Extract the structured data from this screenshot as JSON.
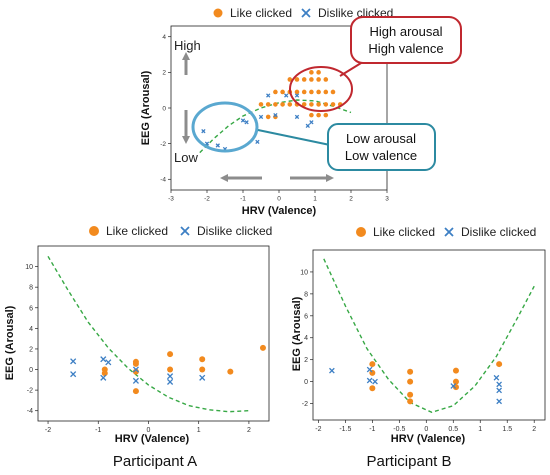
{
  "colors": {
    "like": "#f28a1e",
    "dislike": "#3d7fc4",
    "fit": "#37a845",
    "high_callout": "#c0282f",
    "low_callout": "#2c8aa1",
    "low_ellipse": "#5aa8d0",
    "arrow": "#8c8c8c"
  },
  "legend": {
    "like_label": "Like clicked",
    "dislike_label": "Dislike clicked"
  },
  "chart_data": [
    {
      "type": "scatter",
      "panel": "top",
      "xlabel": "HRV (Valence)",
      "ylabel": "EEG (Arousal)",
      "xlim": [
        -3,
        3
      ],
      "ylim": [
        -4.6,
        4.6
      ],
      "xticks": [
        -3,
        -2,
        -1,
        0,
        1,
        2,
        3
      ],
      "yticks": [
        -4,
        -2,
        0,
        2,
        4
      ],
      "annotations": {
        "high": "High",
        "low": "Low",
        "high_callout": [
          "High arousal",
          "High valence"
        ],
        "low_callout": [
          "Low arousal",
          "Low valence"
        ]
      },
      "fit": {
        "style": "dashed",
        "points": [
          [
            -2.2,
            -2.5
          ],
          [
            -1.8,
            -1.7
          ],
          [
            -1.4,
            -1.0
          ],
          [
            -1.0,
            -0.45
          ],
          [
            -0.5,
            0.0
          ],
          [
            0.0,
            0.3
          ],
          [
            0.5,
            0.45
          ],
          [
            1.0,
            0.4
          ],
          [
            1.5,
            0.1
          ],
          [
            2.0,
            -0.25
          ]
        ]
      },
      "series": [
        {
          "name": "Like clicked",
          "marker": "circle",
          "x": [
            -0.5,
            -0.3,
            -0.1,
            0.1,
            0.3,
            0.5,
            0.7,
            0.9,
            1.1,
            1.3,
            1.5,
            1.7,
            -0.1,
            0.1,
            0.3,
            0.5,
            0.7,
            0.9,
            1.1,
            1.3,
            1.5,
            0.3,
            0.5,
            0.7,
            0.9,
            1.1,
            1.3,
            0.9,
            1.1,
            1.3,
            -0.3,
            -0.1,
            0.9,
            1.1
          ],
          "y": [
            0.2,
            0.2,
            0.2,
            0.2,
            0.2,
            0.2,
            0.2,
            0.2,
            0.2,
            0.2,
            0.2,
            0.2,
            0.9,
            0.9,
            0.9,
            0.9,
            0.9,
            0.9,
            0.9,
            0.9,
            0.9,
            1.6,
            1.6,
            1.6,
            1.6,
            1.6,
            1.6,
            -0.4,
            -0.4,
            -0.4,
            -0.5,
            -0.5,
            2.0,
            2.0
          ]
        },
        {
          "name": "Dislike clicked",
          "marker": "x",
          "x": [
            -2.1,
            -2.0,
            -1.7,
            -1.5,
            -1.0,
            -0.9,
            -0.6,
            -0.5,
            -0.1,
            0.2,
            0.5,
            0.8,
            -0.3,
            0.5,
            0.9
          ],
          "y": [
            -1.3,
            -2.0,
            -2.1,
            -2.3,
            -0.7,
            -0.8,
            -1.9,
            -0.5,
            -0.4,
            0.7,
            -0.5,
            -1.0,
            0.7,
            0.7,
            -0.8
          ]
        }
      ]
    },
    {
      "type": "scatter",
      "panel": "bottom-left",
      "title_caption": "Participant A",
      "xlabel": "HRV (Valence)",
      "ylabel": "EEG (Arousal)",
      "xlim": [
        -2.2,
        2.4
      ],
      "ylim": [
        -5,
        12
      ],
      "xticks": [
        -2,
        -1,
        0,
        1,
        2
      ],
      "yticks": [
        -4,
        -2,
        0,
        2,
        4,
        6,
        8,
        10
      ],
      "fit": {
        "style": "dashed",
        "points": [
          [
            -2.0,
            11.0
          ],
          [
            -1.6,
            7.7
          ],
          [
            -1.2,
            4.6
          ],
          [
            -0.8,
            2.1
          ],
          [
            -0.4,
            0.1
          ],
          [
            0.0,
            -1.5
          ],
          [
            0.4,
            -2.7
          ],
          [
            0.8,
            -3.5
          ],
          [
            1.2,
            -3.9
          ],
          [
            1.6,
            -4.1
          ],
          [
            2.0,
            -4.0
          ]
        ]
      },
      "series": [
        {
          "name": "Like clicked",
          "marker": "circle",
          "x": [
            -0.87,
            -0.87,
            -0.25,
            -0.25,
            -0.25,
            -0.25,
            0.43,
            0.43,
            1.07,
            1.07,
            1.63,
            2.28
          ],
          "y": [
            0.0,
            -0.35,
            0.75,
            0.55,
            -0.2,
            -2.1,
            1.5,
            0.0,
            1.0,
            0.0,
            -0.2,
            2.1
          ]
        },
        {
          "name": "Dislike clicked",
          "marker": "x",
          "x": [
            -1.5,
            -1.5,
            -0.9,
            -0.9,
            -0.8,
            -0.25,
            -0.25,
            0.43,
            0.43,
            1.07
          ],
          "y": [
            0.8,
            -0.45,
            1.0,
            -0.8,
            0.7,
            0.0,
            -1.1,
            -0.65,
            -1.2,
            -0.8
          ]
        }
      ]
    },
    {
      "type": "scatter",
      "panel": "bottom-right",
      "title_caption": "Participant B",
      "xlabel": "HRV (Valence)",
      "ylabel": "EEG (Arousal)",
      "xlim": [
        -2.1,
        2.2
      ],
      "ylim": [
        -3.5,
        12
      ],
      "xticks": [
        -2.0,
        -1.5,
        -1.0,
        -0.5,
        0.0,
        0.5,
        1.0,
        1.5,
        2.0
      ],
      "yticks": [
        -2,
        0,
        2,
        4,
        6,
        8,
        10
      ],
      "fit": {
        "style": "dashed",
        "points": [
          [
            -1.9,
            11.2
          ],
          [
            -1.5,
            6.9
          ],
          [
            -1.1,
            3.0
          ],
          [
            -0.7,
            0.2
          ],
          [
            -0.3,
            -1.9
          ],
          [
            0.1,
            -2.8
          ],
          [
            0.5,
            -2.2
          ],
          [
            0.9,
            -0.4
          ],
          [
            1.3,
            2.3
          ],
          [
            1.7,
            5.9
          ],
          [
            2.0,
            8.7
          ]
        ]
      },
      "series": [
        {
          "name": "Like clicked",
          "marker": "circle",
          "x": [
            -1.0,
            -1.0,
            -1.0,
            -0.3,
            -0.3,
            -0.3,
            -0.3,
            0.55,
            0.55,
            0.55,
            1.35
          ],
          "y": [
            1.6,
            0.8,
            -0.6,
            0.9,
            0.0,
            -1.2,
            -1.8,
            1.0,
            0.0,
            -0.5,
            1.6
          ]
        },
        {
          "name": "Dislike clicked",
          "marker": "x",
          "x": [
            -1.75,
            -1.05,
            -1.05,
            -0.95,
            0.5,
            1.3,
            1.35,
            1.35,
            1.35
          ],
          "y": [
            1.0,
            1.1,
            0.1,
            0.0,
            -0.4,
            0.35,
            -0.25,
            -0.8,
            -1.8
          ]
        }
      ]
    }
  ]
}
